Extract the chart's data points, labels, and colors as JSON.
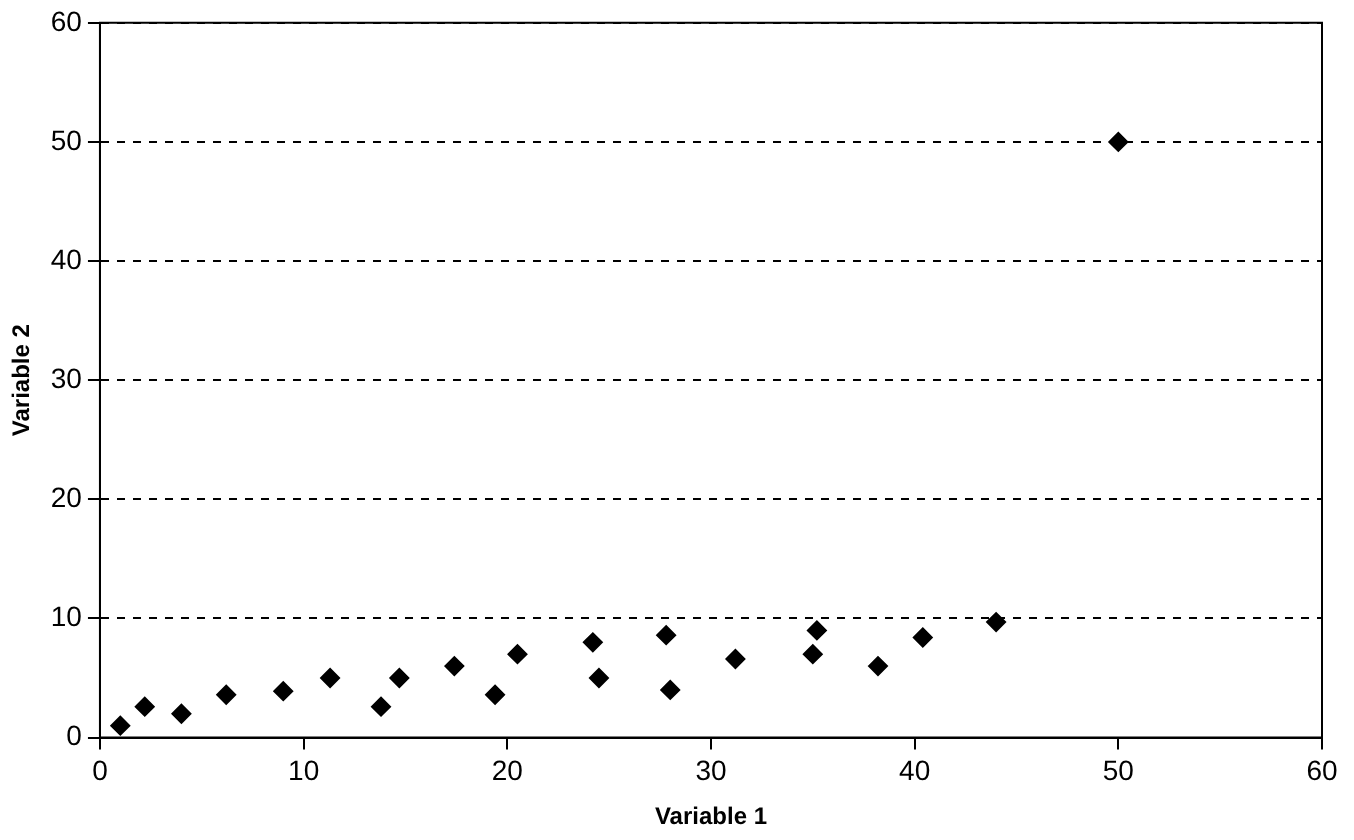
{
  "chart_data": {
    "type": "scatter",
    "xlabel": "Variable 1",
    "ylabel": "Variable 2",
    "x": [
      1,
      2.2,
      4,
      6.2,
      9,
      11.3,
      13.8,
      14.7,
      17.4,
      19.4,
      20.5,
      24.2,
      24.5,
      27.8,
      28,
      31.2,
      35,
      35.2,
      38.2,
      40.4,
      44,
      50
    ],
    "series": [
      {
        "color": "#000000",
        "values": [
          1,
          2.6,
          2,
          3.6,
          3.9,
          5,
          2.6,
          5,
          6,
          3.6,
          7,
          8,
          5,
          8.6,
          4,
          6.6,
          7,
          9,
          6,
          8.4,
          9.7,
          50
        ]
      }
    ],
    "xlim": [
      0,
      60
    ],
    "xticks": [
      0,
      10,
      20,
      30,
      40,
      50,
      60
    ],
    "ylim": [
      0,
      60
    ],
    "yticks": [
      0,
      10,
      20,
      30,
      40,
      50,
      60
    ],
    "grid": "y",
    "legend": false,
    "marker": "diamond"
  }
}
